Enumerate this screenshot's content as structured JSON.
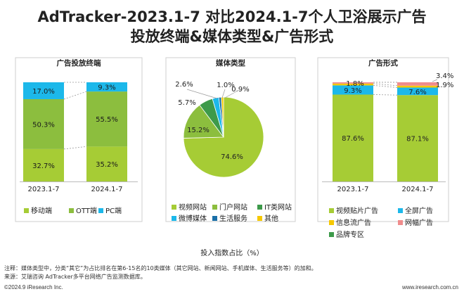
{
  "title_line1": "AdTracker-2023.1-7 对比2024.1-7个人卫浴展示广告",
  "title_line2": "投放终端&媒体类型&广告形式",
  "x_axis_title": "投入指数占比（%）",
  "notes": {
    "note": "注释：媒体类型中，分类“其它”为占比排名在第6-15名的10类媒体（其它网站、新闻网站、手机媒体、生活服务等）的加和。",
    "source": "来源：艾瑞咨询 AdTracker多平台网络广告监测数据库。"
  },
  "footer": {
    "copyright": "©2024.9 iResearch Inc.",
    "site": "www.iresearch.com.cn"
  },
  "chart_data": [
    {
      "type": "bar",
      "stacked": true,
      "title": "广告投放终端",
      "categories": [
        "2023.1-7",
        "2024.1-7"
      ],
      "ylim": [
        0,
        100
      ],
      "series": [
        {
          "name": "移动端",
          "color": "#a6cc35",
          "values": [
            32.7,
            35.2
          ]
        },
        {
          "name": "OTT端",
          "color": "#8cbe3e",
          "values": [
            50.3,
            55.5
          ]
        },
        {
          "name": "PC端",
          "color": "#1cb8ea",
          "values": [
            17.0,
            9.3
          ]
        }
      ],
      "labels": [
        [
          "32.7%",
          "35.2%"
        ],
        [
          "50.3%",
          "55.5%"
        ],
        [
          "17.0%",
          "9.3%"
        ]
      ]
    },
    {
      "type": "pie",
      "title": "媒体类型",
      "slices": [
        {
          "name": "视频网站",
          "value": 74.6,
          "label": "74.6%",
          "color": "#a6cc35"
        },
        {
          "name": "门户网站",
          "value": 15.2,
          "label": "15.2%",
          "color": "#8cbe3e"
        },
        {
          "name": "IT类网站",
          "value": 5.7,
          "label": "5.7%",
          "color": "#3d9a4a"
        },
        {
          "name": "微博媒体",
          "value": 2.6,
          "label": "2.6%",
          "color": "#1cb8ea"
        },
        {
          "name": "生活服务",
          "value": 1.0,
          "label": "1.0%",
          "color": "#1a6fa8"
        },
        {
          "name": "其他",
          "value": 0.9,
          "label": "0.9%",
          "color": "#f6c800"
        }
      ]
    },
    {
      "type": "bar",
      "stacked": true,
      "title": "广告形式",
      "categories": [
        "2023.1-7",
        "2024.1-7"
      ],
      "ylim": [
        0,
        100
      ],
      "series": [
        {
          "name": "视频贴片广告",
          "color": "#a6cc35",
          "values": [
            87.6,
            87.1
          ]
        },
        {
          "name": "全屏广告",
          "color": "#1cb8ea",
          "values": [
            9.3,
            7.6
          ]
        },
        {
          "name": "信息流广告",
          "color": "#f6c800",
          "values": [
            1.8,
            1.9
          ]
        },
        {
          "name": "网幅广告",
          "color": "#f08c8c",
          "values": [
            1.3,
            3.4
          ]
        },
        {
          "name": "品牌专区",
          "color": "#3d9a4a",
          "values": [
            0,
            0
          ]
        }
      ],
      "labels": [
        [
          "87.6%",
          "87.1%"
        ],
        [
          "9.3%",
          "7.6%"
        ],
        [
          "1.8%",
          "1.9%"
        ],
        [
          "",
          "3.4%"
        ],
        [
          "",
          ""
        ]
      ]
    }
  ]
}
